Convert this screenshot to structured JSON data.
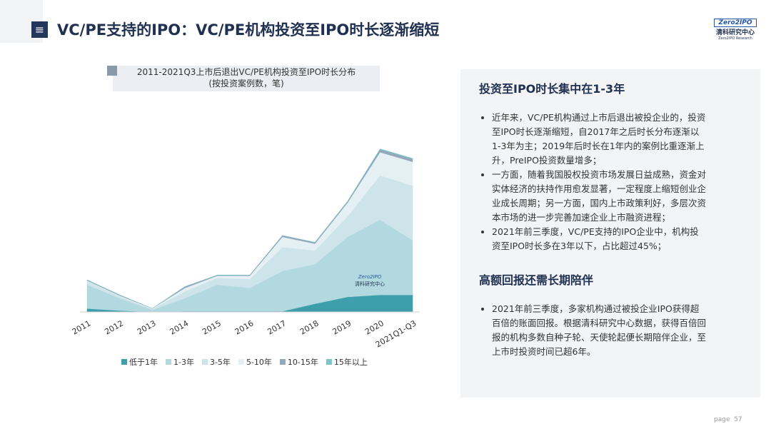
{
  "header": {
    "title": "VC/PE支持的IPO：VC/PE机构投资至IPO时长逐渐缩短",
    "logo": {
      "mark": "Zero2IPO",
      "name": "清科研究中心",
      "sub": "Zero2IPO Research"
    }
  },
  "chart_data": {
    "type": "stacked-area",
    "title": "2011-2021Q3上市后退出VC/PE机构投资至IPO时长分布",
    "subtitle": "(按投资案例数，笔)",
    "watermark": {
      "mark": "Zero2IPO",
      "name": "清科研究中心"
    },
    "categories": [
      "2011",
      "2012",
      "2013",
      "2014",
      "2015",
      "2016",
      "2017",
      "2018",
      "2019",
      "2020",
      "2021Q1-Q3"
    ],
    "ylim": [
      0,
      250
    ],
    "series": [
      {
        "name": "低于1年",
        "color": "#3d9fac",
        "values": [
          5,
          2,
          0,
          1,
          1,
          1,
          1,
          12,
          22,
          25,
          25
        ]
      },
      {
        "name": "1-3年",
        "color": "#b2d9e0",
        "values": [
          35,
          18,
          3,
          19,
          39,
          34,
          59,
          58,
          88,
          110,
          80
        ]
      },
      {
        "name": "3-5年",
        "color": "#cde4ea",
        "values": [
          5,
          3,
          1,
          10,
          10,
          13,
          35,
          20,
          30,
          65,
          80
        ]
      },
      {
        "name": "5-10年",
        "color": "#e4f0f3",
        "values": [
          1,
          1,
          1,
          5,
          3,
          5,
          15,
          10,
          20,
          34,
          35
        ]
      },
      {
        "name": "10-15年",
        "color": "#93a9b9",
        "values": [
          1,
          1,
          0,
          2,
          1,
          1,
          2,
          2,
          2,
          4,
          4
        ]
      },
      {
        "name": "15年以上",
        "color": "#7cc3cc",
        "values": [
          0,
          0,
          0,
          0,
          0,
          0,
          0,
          0,
          0,
          1,
          1
        ]
      }
    ]
  },
  "panel": {
    "sections": [
      {
        "heading": "投资至IPO时长集中在1-3年",
        "bullets": [
          "近年来，VC/PE机构通过上市后退出被投企业的，投资至IPO时长逐渐缩短，自2017年之后时长分布逐渐以1-3年为主；2019年后时长在1年内的案例比重逐渐上升，PreIPO投资数量增多；",
          "一方面，随着我国股权投资市场发展日益成熟，资金对实体经济的扶持作用愈发显著，一定程度上缩短创业企业成长周期；另一方面，国内上市政策利好，多层次资本市场的进一步完善加速企业上市融资进程；",
          "2021年前三季度，VC/PE支持的IPO企业中，机构投资至IPO时长多在3年以下，占比超过45%；"
        ]
      },
      {
        "heading": "高额回报还需长期陪伴",
        "bullets": [
          "2021年前三季度，多家机构通过被投企业IPO获得超百倍的账面回报。根据清科研究中心数据，获得百倍回报的机构多数自种子轮、天使轮起便长期陪伴企业，至上市时投资时间已超6年。"
        ]
      }
    ]
  },
  "footer": {
    "page": "page  57"
  }
}
